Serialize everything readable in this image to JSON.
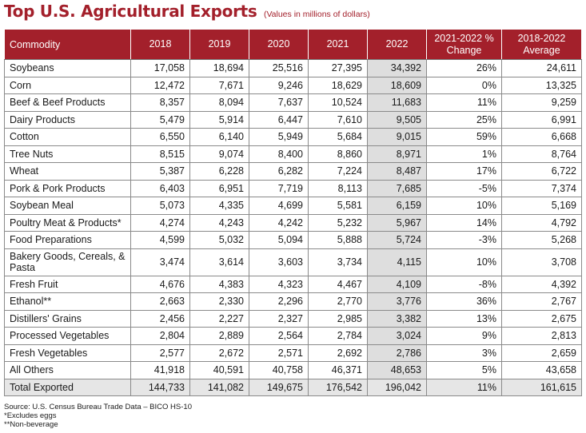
{
  "title": "Top U.S. Agricultural Exports",
  "subtitle": "(Values in millions of dollars)",
  "columns": [
    "Commodity",
    "2018",
    "2019",
    "2020",
    "2021",
    "2022",
    "2021-2022 % Change",
    "2018-2022 Average"
  ],
  "rows": [
    [
      "Soybeans",
      "17,058",
      "18,694",
      "25,516",
      "27,395",
      "34,392",
      "26%",
      "24,611"
    ],
    [
      "Corn",
      "12,472",
      "7,671",
      "9,246",
      "18,629",
      "18,609",
      "0%",
      "13,325"
    ],
    [
      "Beef & Beef Products",
      "8,357",
      "8,094",
      "7,637",
      "10,524",
      "11,683",
      "11%",
      "9,259"
    ],
    [
      "Dairy Products",
      "5,479",
      "5,914",
      "6,447",
      "7,610",
      "9,505",
      "25%",
      "6,991"
    ],
    [
      "Cotton",
      "6,550",
      "6,140",
      "5,949",
      "5,684",
      "9,015",
      "59%",
      "6,668"
    ],
    [
      "Tree Nuts",
      "8,515",
      "9,074",
      "8,400",
      "8,860",
      "8,971",
      "1%",
      "8,764"
    ],
    [
      "Wheat",
      "5,387",
      "6,228",
      "6,282",
      "7,224",
      "8,487",
      "17%",
      "6,722"
    ],
    [
      "Pork & Pork Products",
      "6,403",
      "6,951",
      "7,719",
      "8,113",
      "7,685",
      "-5%",
      "7,374"
    ],
    [
      "Soybean Meal",
      "5,073",
      "4,335",
      "4,699",
      "5,581",
      "6,159",
      "10%",
      "5,169"
    ],
    [
      "Poultry Meat & Products*",
      "4,274",
      "4,243",
      "4,242",
      "5,232",
      "5,967",
      "14%",
      "4,792"
    ],
    [
      "Food Preparations",
      "4,599",
      "5,032",
      "5,094",
      "5,888",
      "5,724",
      "-3%",
      "5,268"
    ],
    [
      "Bakery Goods, Cereals, & Pasta",
      "3,474",
      "3,614",
      "3,603",
      "3,734",
      "4,115",
      "10%",
      "3,708"
    ],
    [
      "Fresh Fruit",
      "4,676",
      "4,383",
      "4,323",
      "4,467",
      "4,109",
      "-8%",
      "4,392"
    ],
    [
      "Ethanol**",
      "2,663",
      "2,330",
      "2,296",
      "2,770",
      "3,776",
      "36%",
      "2,767"
    ],
    [
      "Distillers' Grains",
      "2,456",
      "2,227",
      "2,327",
      "2,985",
      "3,382",
      "13%",
      "2,675"
    ],
    [
      "Processed Vegetables",
      "2,804",
      "2,889",
      "2,564",
      "2,784",
      "3,024",
      "9%",
      "2,813"
    ],
    [
      "Fresh Vegetables",
      "2,577",
      "2,672",
      "2,571",
      "2,692",
      "2,786",
      "3%",
      "2,659"
    ],
    [
      "All Others",
      "41,918",
      "40,591",
      "40,758",
      "46,371",
      "48,653",
      "5%",
      "43,658"
    ]
  ],
  "total": [
    "Total Exported",
    "144,733",
    "141,082",
    "149,675",
    "176,542",
    "196,042",
    "11%",
    "161,615"
  ],
  "footnotes": [
    "Source: U.S. Census Bureau Trade Data – BICO HS-10",
    "*Excludes eggs",
    "**Non-beverage"
  ],
  "colors": {
    "accent": "#a3202b",
    "highlight_column": "#dedede",
    "total_row": "#e6e6e6"
  }
}
